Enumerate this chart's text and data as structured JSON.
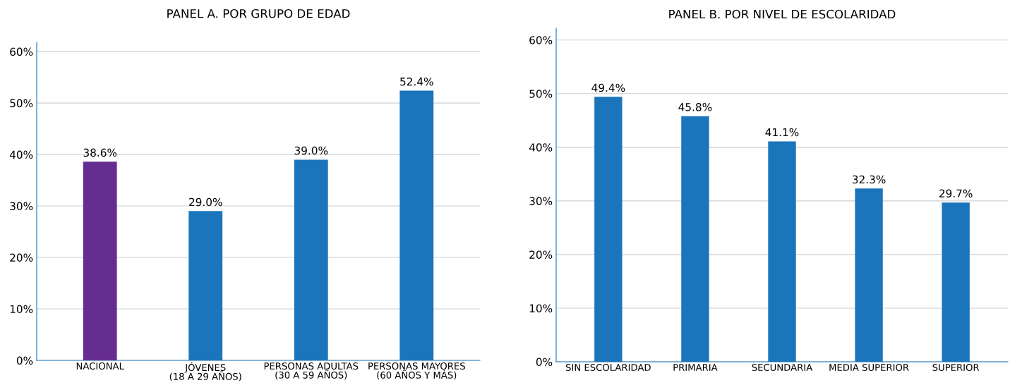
{
  "chart_data": [
    {
      "type": "bar",
      "title": "PANEL A. POR GRUPO DE EDAD",
      "categories": [
        "NACIONAL",
        "JÓVENES\n(18 A 29 AÑOS)",
        "PERSONAS ADULTAS\n(30 A 59 AÑOS)",
        "PERSONAS MAYORES\n(60 AÑOS Y MÁS)"
      ],
      "values": [
        38.6,
        29.0,
        39.0,
        52.4
      ],
      "colors": [
        "#662d91",
        "#1a75bb",
        "#1a75bb",
        "#1a75bb"
      ],
      "value_labels": [
        "38.6%",
        "29.0%",
        "39.0%",
        "52.4%"
      ],
      "ylim": [
        0,
        61.8
      ],
      "yticks": [
        {
          "value": 0,
          "label": "0%"
        },
        {
          "value": 10,
          "label": "10%"
        },
        {
          "value": 20,
          "label": "20%"
        },
        {
          "value": 30,
          "label": "30%"
        },
        {
          "value": 40,
          "label": "40%"
        },
        {
          "value": 50,
          "label": "50%"
        },
        {
          "value": 60,
          "label": "60%"
        }
      ],
      "grid": "y",
      "legend": false
    },
    {
      "type": "bar",
      "title": "PANEL B. POR NIVEL DE ESCOLARIDAD",
      "categories": [
        "SIN ESCOLARIDAD",
        "PRIMARIA",
        "SECUNDARIA",
        "MEDIA SUPERIOR",
        "SUPERIOR"
      ],
      "values": [
        49.4,
        45.8,
        41.1,
        32.3,
        29.7
      ],
      "colors": [
        "#1a75bb",
        "#1a75bb",
        "#1a75bb",
        "#1a75bb",
        "#1a75bb"
      ],
      "value_labels": [
        "49.4%",
        "45.8%",
        "41.1%",
        "32.3%",
        "29.7%"
      ],
      "ylim": [
        0,
        62.2
      ],
      "yticks": [
        {
          "value": 0,
          "label": "0%"
        },
        {
          "value": 10,
          "label": "10%"
        },
        {
          "value": 20,
          "label": "20%"
        },
        {
          "value": 30,
          "label": "30%"
        },
        {
          "value": 40,
          "label": "40%"
        },
        {
          "value": 50,
          "label": "50%"
        },
        {
          "value": 60,
          "label": "60%"
        }
      ],
      "grid": "y",
      "legend": false
    }
  ]
}
